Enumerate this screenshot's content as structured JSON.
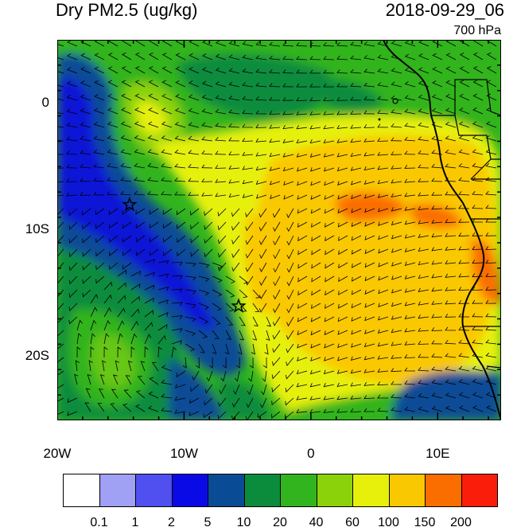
{
  "header": {
    "title": "Dry PM2.5 (ug/kg)",
    "datetime": "2018-09-29_06",
    "level": "700 hPa"
  },
  "map": {
    "lon_range": [
      -20,
      15
    ],
    "lat_range": [
      -25,
      5
    ],
    "y_ticks": [
      {
        "lat": 0,
        "label": "0"
      },
      {
        "lat": -10,
        "label": "10S"
      },
      {
        "lat": -20,
        "label": "20S"
      }
    ],
    "x_ticks": [
      {
        "lon": -20,
        "label": "20W"
      },
      {
        "lon": -10,
        "label": "10W"
      },
      {
        "lon": 0,
        "label": "0"
      },
      {
        "lon": 10,
        "label": "10E"
      }
    ],
    "markers": [
      {
        "type": "star",
        "lon": -14.3,
        "lat": -8.0
      },
      {
        "type": "star",
        "lon": -5.7,
        "lat": -16.0
      }
    ]
  },
  "colorbar": {
    "colors": [
      "#ffffff",
      "#a0a0f5",
      "#5050f0",
      "#0a0ae6",
      "#0a4b96",
      "#0a8c3c",
      "#32b41e",
      "#8cd20a",
      "#e6f00a",
      "#fac800",
      "#fa6e00",
      "#fa1e0a"
    ],
    "labels": [
      "0.1",
      "1",
      "2",
      "5",
      "10",
      "20",
      "40",
      "60",
      "100",
      "150",
      "200"
    ]
  }
}
